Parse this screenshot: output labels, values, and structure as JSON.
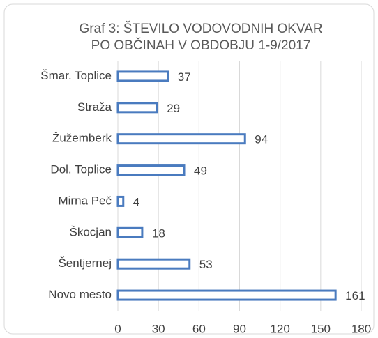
{
  "chart_data": {
    "type": "hbar",
    "title": [
      "Graf 3: ŠTEVILO VODOVODNIH OKVAR",
      "PO OBČINAH  V OBDOBJU 1-9/2017"
    ],
    "categories": [
      "Šmar. Toplice",
      "Straža",
      "Žužemberk",
      "Dol. Toplice",
      "Mirna Peč",
      "Škocjan",
      "Šentjernej",
      "Novo mesto"
    ],
    "values": [
      37,
      29,
      94,
      49,
      4,
      18,
      53,
      161
    ],
    "color": "#4a7bbf",
    "xlim": [
      0,
      180
    ],
    "xticks": [
      0,
      30,
      60,
      90,
      120,
      150,
      180
    ],
    "grid": true
  }
}
